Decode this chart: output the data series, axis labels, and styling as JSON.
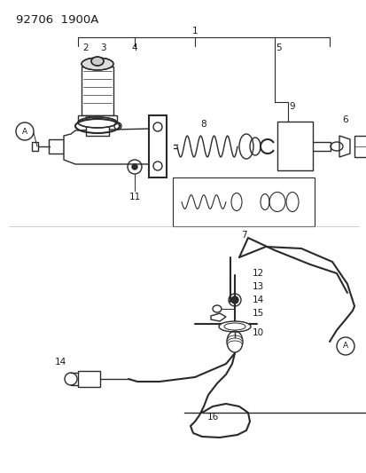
{
  "title": "92706  1900A",
  "bg_color": "#ffffff",
  "line_color": "#2a2a2a",
  "text_color": "#1a1a1a",
  "title_fontsize": 9.5,
  "label_fontsize": 7.5
}
